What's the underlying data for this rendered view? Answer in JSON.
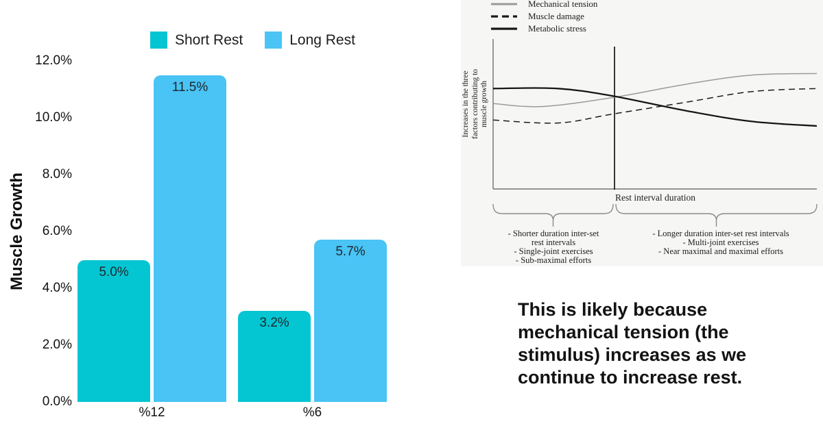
{
  "chart_data": [
    {
      "type": "bar",
      "title": "",
      "categories": [
        "%12",
        "%6"
      ],
      "series": [
        {
          "name": "Short Rest",
          "color": "#04C6D2",
          "values": [
            5.0,
            3.2
          ],
          "labels": [
            "5.0%",
            "3.2%"
          ]
        },
        {
          "name": "Long Rest",
          "color": "#4AC3F5",
          "values": [
            11.5,
            5.7
          ],
          "labels": [
            "11.5%",
            "5.7%"
          ]
        }
      ],
      "ylabel": "Muscle Growth",
      "xlabel": "",
      "ylim": [
        0,
        12
      ],
      "grid": false,
      "legend_position": "top",
      "yticks": [
        {
          "v": 0,
          "label": "0.0%"
        },
        {
          "v": 2,
          "label": "2.0%"
        },
        {
          "v": 4,
          "label": "4.0%"
        },
        {
          "v": 6,
          "label": "6.0%"
        },
        {
          "v": 8,
          "label": "8.0%"
        },
        {
          "v": 10,
          "label": "10.0%"
        },
        {
          "v": 12,
          "label": "12.0%"
        }
      ]
    },
    {
      "type": "line",
      "title": "",
      "xlabel": "Rest interval duration",
      "ylabel": "Increases in the three factors contributing to muscle growth",
      "ylim": [
        0,
        1
      ],
      "x_range": [
        0,
        1
      ],
      "grid": false,
      "legend_position": "top-left",
      "series": [
        {
          "name": "Mechanical tension",
          "line": "solid",
          "color": "#9a9a9a",
          "x": [
            0,
            0.15,
            0.37,
            0.6,
            0.8,
            1.0
          ],
          "y": [
            0.57,
            0.55,
            0.61,
            0.7,
            0.76,
            0.77
          ]
        },
        {
          "name": "Muscle damage",
          "line": "dashed",
          "color": "#1a1a1a",
          "x": [
            0,
            0.2,
            0.37,
            0.6,
            0.8,
            1.0
          ],
          "y": [
            0.46,
            0.44,
            0.5,
            0.58,
            0.65,
            0.67
          ]
        },
        {
          "name": "Metabolic stress",
          "line": "solid",
          "color": "#161616",
          "x": [
            0,
            0.2,
            0.37,
            0.6,
            0.8,
            1.0
          ],
          "y": [
            0.67,
            0.67,
            0.62,
            0.52,
            0.45,
            0.42
          ]
        }
      ]
    }
  ],
  "figure": {
    "ylabel_lines": [
      "Increases in the three",
      "factors contributing to",
      "muscle growth"
    ],
    "xlabel": "Rest interval duration",
    "left_list_lines": [
      "-   Shorter duration inter-set",
      "rest intervals",
      "-   Single-joint exercises",
      "-   Sub-maximal efforts"
    ],
    "right_list_lines": [
      "-   Longer duration inter-set rest intervals",
      "-   Multi-joint exercises",
      "-   Near maximal and maximal efforts"
    ]
  },
  "caption": {
    "text": "This is likely because\nmechanical tension  (the\nstimulus) increases as we\ncontinue to increase rest."
  }
}
